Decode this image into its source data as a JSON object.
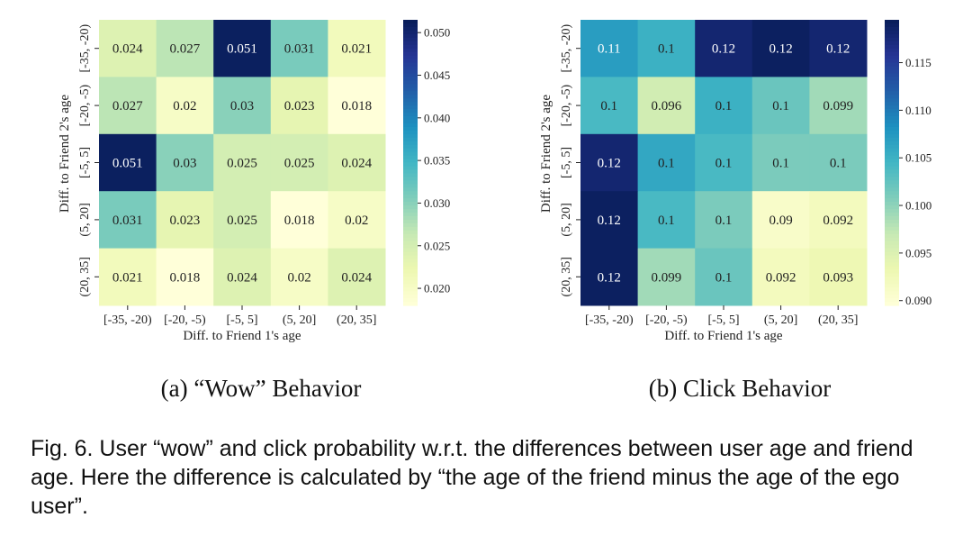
{
  "chart_data": [
    {
      "type": "heatmap",
      "subcaption": "(a) “Wow” Behavior",
      "xlabel": "Diff. to Friend 1's age",
      "ylabel": "Diff. to Friend 2's age",
      "x_categories": [
        "[-35, -20)",
        "[-20, -5)",
        "[-5, 5]",
        "(5, 20]",
        "(20, 35]"
      ],
      "y_categories": [
        "[-35, -20)",
        "[-20, -5)",
        "[-5, 5]",
        "(5, 20]",
        "(20, 35]"
      ],
      "values": [
        [
          0.024,
          0.027,
          0.051,
          0.031,
          0.021
        ],
        [
          0.027,
          0.02,
          0.03,
          0.023,
          0.018
        ],
        [
          0.051,
          0.03,
          0.025,
          0.025,
          0.024
        ],
        [
          0.031,
          0.023,
          0.025,
          0.018,
          0.02
        ],
        [
          0.021,
          0.018,
          0.024,
          0.02,
          0.024
        ]
      ],
      "value_labels": [
        [
          "0.024",
          "0.027",
          "0.051",
          "0.031",
          "0.021"
        ],
        [
          "0.027",
          "0.02",
          "0.03",
          "0.023",
          "0.018"
        ],
        [
          "0.051",
          "0.03",
          "0.025",
          "0.025",
          "0.024"
        ],
        [
          "0.031",
          "0.023",
          "0.025",
          "0.018",
          "0.02"
        ],
        [
          "0.021",
          "0.018",
          "0.024",
          "0.02",
          "0.024"
        ]
      ],
      "colorbar": {
        "min": 0.018,
        "max": 0.0515,
        "ticks": [
          0.02,
          0.025,
          0.03,
          0.035,
          0.04,
          0.045,
          0.05
        ],
        "tick_labels": [
          "0.020",
          "0.025",
          "0.030",
          "0.035",
          "0.040",
          "0.045",
          "0.050"
        ]
      },
      "colormap": "YlGnBu"
    },
    {
      "type": "heatmap",
      "subcaption": "(b) Click Behavior",
      "xlabel": "Diff. to Friend 1's age",
      "ylabel": "Diff. to Friend 2's age",
      "x_categories": [
        "[-35, -20)",
        "[-20, -5)",
        "[-5, 5]",
        "(5, 20]",
        "(20, 35]"
      ],
      "y_categories": [
        "[-35, -20)",
        "[-20, -5)",
        "[-5, 5]",
        "(5, 20]",
        "(20, 35]"
      ],
      "values": [
        [
          0.107,
          0.105,
          0.118,
          0.119,
          0.118
        ],
        [
          0.104,
          0.096,
          0.105,
          0.102,
          0.099
        ],
        [
          0.118,
          0.106,
          0.104,
          0.101,
          0.101
        ],
        [
          0.119,
          0.104,
          0.101,
          0.091,
          0.092
        ],
        [
          0.119,
          0.099,
          0.102,
          0.092,
          0.093
        ]
      ],
      "value_labels": [
        [
          "0.11",
          "0.1",
          "0.12",
          "0.12",
          "0.12"
        ],
        [
          "0.1",
          "0.096",
          "0.1",
          "0.1",
          "0.099"
        ],
        [
          "0.12",
          "0.1",
          "0.1",
          "0.1",
          "0.1"
        ],
        [
          "0.12",
          "0.1",
          "0.1",
          "0.09",
          "0.092"
        ],
        [
          "0.12",
          "0.099",
          "0.1",
          "0.092",
          "0.093"
        ]
      ],
      "colorbar": {
        "min": 0.0895,
        "max": 0.1195,
        "ticks": [
          0.09,
          0.095,
          0.1,
          0.105,
          0.11,
          0.115
        ],
        "tick_labels": [
          "0.090",
          "0.095",
          "0.100",
          "0.105",
          "0.110",
          "0.115"
        ]
      },
      "colormap": "YlGnBu"
    }
  ],
  "caption": "Fig. 6.  User “wow” and click probability w.r.t. the differences between user age and friend age. Here the difference is calculated by “the age of the friend minus the age of the ego user”."
}
